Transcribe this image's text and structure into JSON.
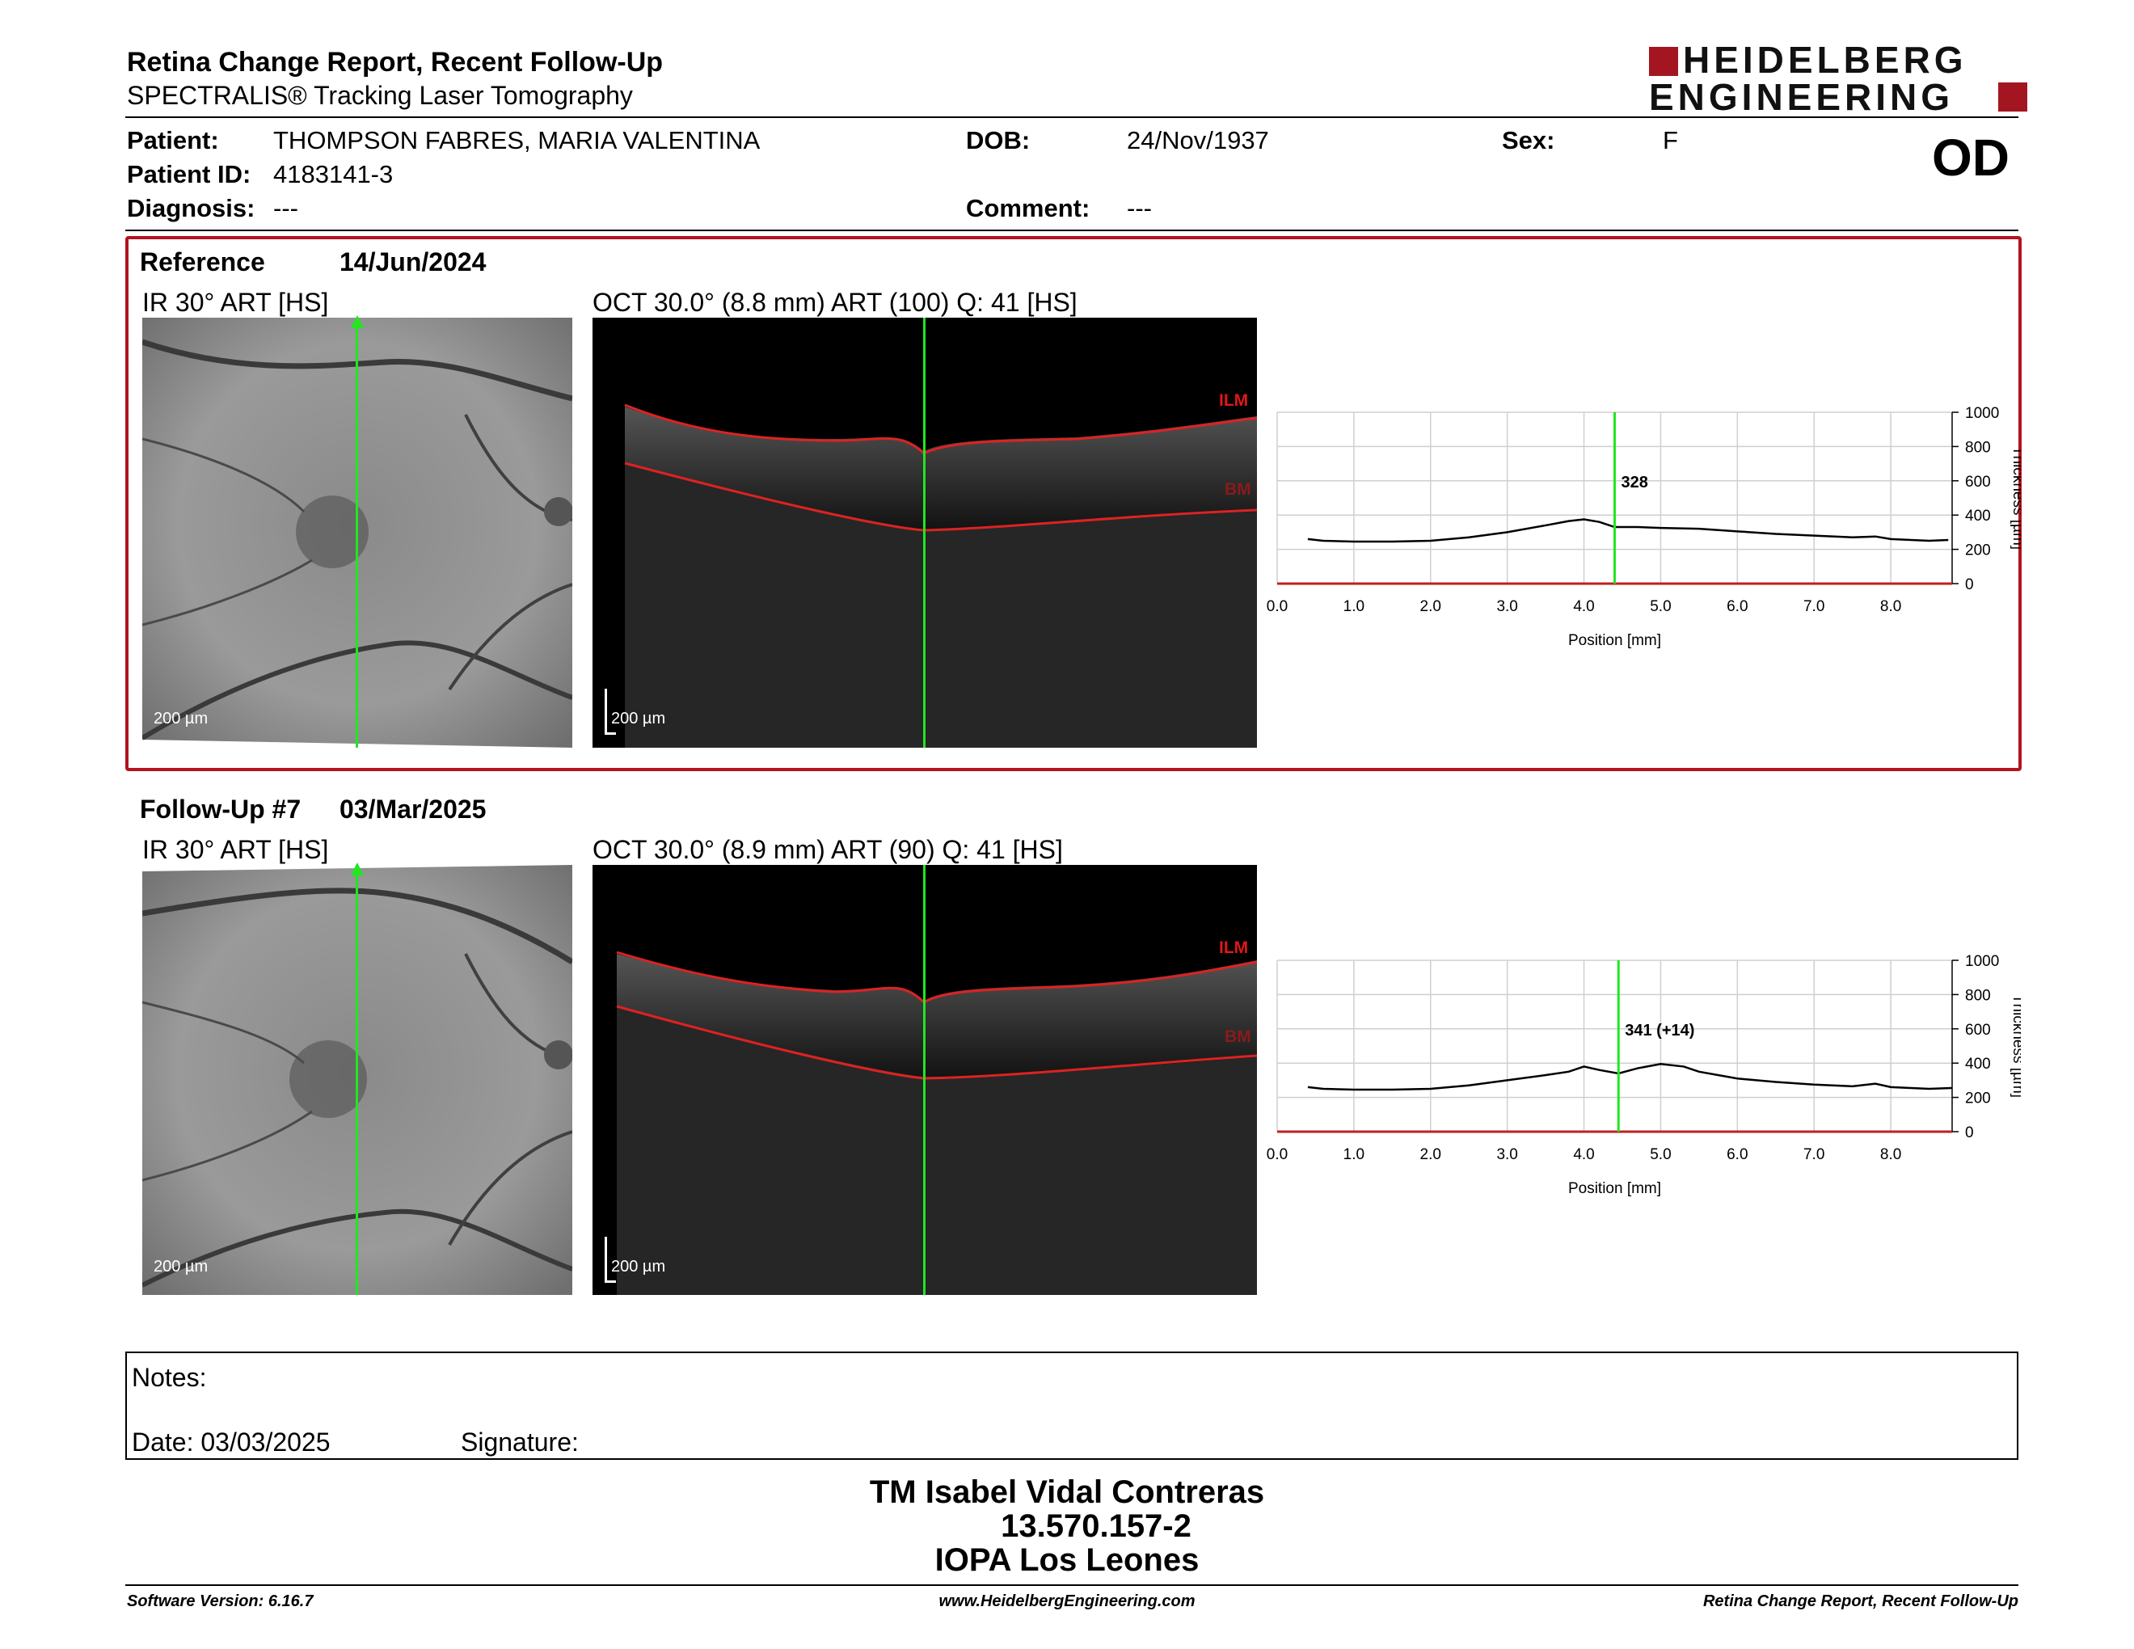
{
  "header": {
    "title": "Retina Change Report, Recent Follow-Up",
    "subtitle": "SPECTRALIS® Tracking Laser Tomography",
    "logo_line1": "HEIDELBERG",
    "logo_line2": "ENGINEERING"
  },
  "patient": {
    "patient_label": "Patient:",
    "patient_value": "THOMPSON FABRES, MARIA VALENTINA",
    "id_label": "Patient ID:",
    "id_value": "4183141-3",
    "diagnosis_label": "Diagnosis:",
    "diagnosis_value": "---",
    "dob_label": "DOB:",
    "dob_value": "24/Nov/1937",
    "comment_label": "Comment:",
    "comment_value": "---",
    "sex_label": "Sex:",
    "sex_value": "F",
    "eye": "OD"
  },
  "reference": {
    "label": "Reference",
    "date": "14/Jun/2024",
    "ir_title": "IR 30° ART [HS]",
    "oct_title": "OCT 30.0° (8.8 mm) ART (100) Q: 41 [HS]",
    "scale": "200 µm",
    "ilm": "ILM",
    "bm": "BM"
  },
  "followup": {
    "label": "Follow-Up #7",
    "date": "03/Mar/2025",
    "ir_title": "IR 30° ART [HS]",
    "oct_title": "OCT 30.0° (8.9 mm) ART (90) Q: 41 [HS]",
    "scale": "200 µm",
    "ilm": "ILM",
    "bm": "BM"
  },
  "chart_data": [
    {
      "type": "line",
      "xlabel": "Position [mm]",
      "ylabel": "Thickness [µm]",
      "xlim": [
        0,
        8.8
      ],
      "ylim": [
        0,
        1000
      ],
      "xticks": [
        "0.0",
        "1.0",
        "2.0",
        "3.0",
        "4.0",
        "5.0",
        "6.0",
        "7.0",
        "8.0"
      ],
      "yticks": [
        "0",
        "200",
        "400",
        "600",
        "800",
        "1000"
      ],
      "cursor_x": 4.4,
      "cursor_label": "328",
      "grid": true,
      "series": [
        {
          "x": [
            0.4,
            0.6,
            1.0,
            1.5,
            2.0,
            2.5,
            3.0,
            3.5,
            3.8,
            4.0,
            4.2,
            4.4,
            4.7,
            5.0,
            5.5,
            6.0,
            6.5,
            7.0,
            7.5,
            7.8,
            8.0,
            8.5,
            8.75
          ],
          "values": [
            260,
            250,
            245,
            245,
            250,
            270,
            300,
            340,
            365,
            375,
            360,
            330,
            330,
            325,
            320,
            305,
            290,
            280,
            270,
            275,
            260,
            250,
            255
          ]
        }
      ]
    },
    {
      "type": "line",
      "xlabel": "Position [mm]",
      "ylabel": "Thickness [µm]",
      "xlim": [
        0,
        8.8
      ],
      "ylim": [
        0,
        1000
      ],
      "xticks": [
        "0.0",
        "1.0",
        "2.0",
        "3.0",
        "4.0",
        "5.0",
        "6.0",
        "7.0",
        "8.0"
      ],
      "yticks": [
        "0",
        "200",
        "400",
        "600",
        "800",
        "1000"
      ],
      "cursor_x": 4.45,
      "cursor_label": "341 (+14)",
      "grid": true,
      "series": [
        {
          "x": [
            0.4,
            0.6,
            1.0,
            1.5,
            2.0,
            2.5,
            3.0,
            3.5,
            3.8,
            4.0,
            4.2,
            4.45,
            4.7,
            5.0,
            5.3,
            5.5,
            6.0,
            6.5,
            7.0,
            7.5,
            7.8,
            8.0,
            8.5,
            8.8
          ],
          "values": [
            260,
            250,
            245,
            245,
            250,
            270,
            300,
            330,
            350,
            380,
            360,
            340,
            370,
            395,
            380,
            350,
            310,
            290,
            275,
            265,
            280,
            260,
            250,
            255
          ]
        }
      ]
    }
  ],
  "notes": {
    "notes_label": "Notes:",
    "date_label": "Date: 03/03/2025",
    "signature_label": "Signature:"
  },
  "signer": {
    "name": "TM Isabel Vidal Contreras",
    "id": "13.570.157-2",
    "institution": "IOPA Los Leones"
  },
  "footer": {
    "version": "Software Version: 6.16.7",
    "url": "www.HeidelbergEngineering.com",
    "report": "Retina Change Report, Recent Follow-Up"
  }
}
